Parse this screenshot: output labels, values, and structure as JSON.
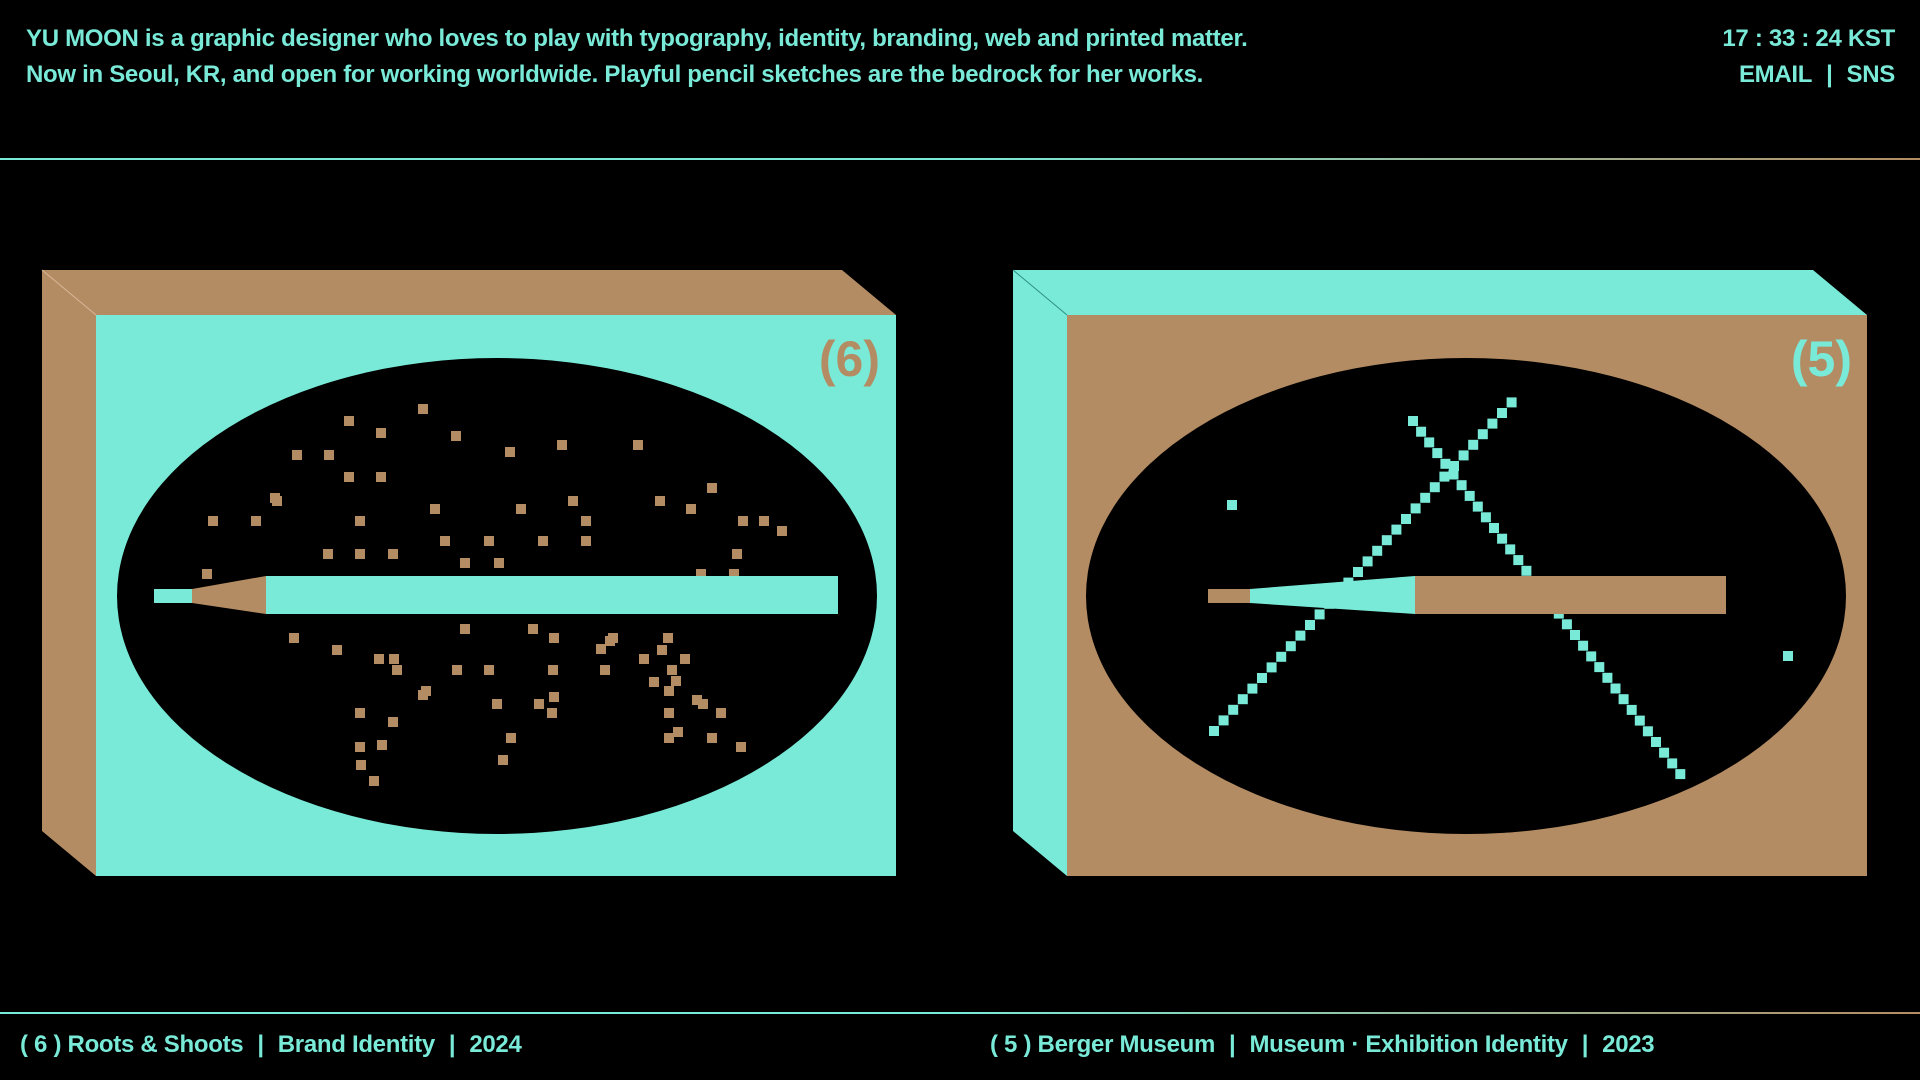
{
  "intro": {
    "line1": "YU MOON is a graphic designer who loves to play with typography, identity, branding, web and printed matter.",
    "line2": "Now in Seoul, KR, and open for working worldwide. Playful pencil sketches are the bedrock for her works."
  },
  "meta": {
    "clock": "17 : 33 : 24 KST",
    "email_label": "EMAIL",
    "separator": "|",
    "sns_label": "SNS"
  },
  "colors": {
    "background": "#000000",
    "mint": "#79ead8",
    "tan": "#b48c63"
  },
  "projects": [
    {
      "number_label": "(6)",
      "caption": {
        "number": "( 6 ) Roots & Shoots",
        "category": "Brand Identity",
        "year": "2024",
        "separator": "|"
      },
      "face_color": "mint",
      "motif": "pencil-with-scattered-dots"
    },
    {
      "number_label": "(5)",
      "caption": {
        "number": "( 5 ) Berger Museum",
        "category": "Museum · Exhibition Identity",
        "year": "2023",
        "separator": "|"
      },
      "face_color": "tan",
      "motif": "pencil-with-crossing-lines"
    }
  ]
}
